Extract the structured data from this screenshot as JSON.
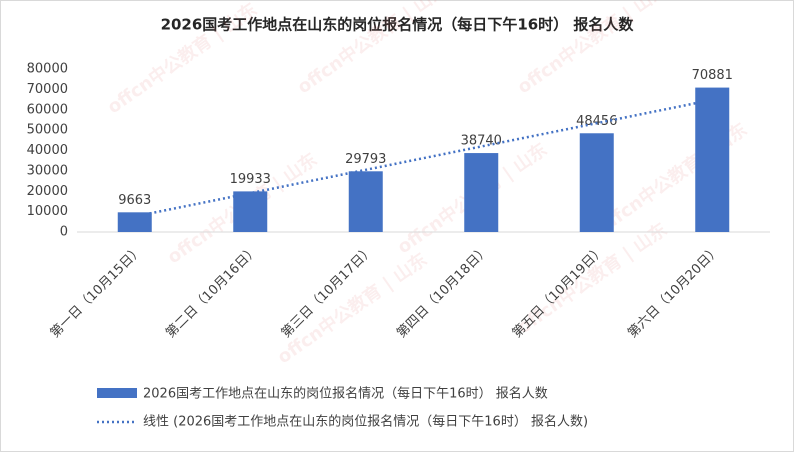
{
  "chart_data": {
    "type": "bar",
    "title": "2026国考工作地点在山东的岗位报名情况（每日下午16时） 报名人数",
    "categories": [
      "第一日（10月15日）",
      "第二日（10月16日）",
      "第三日（10月17日）",
      "第四日（10月18日）",
      "第五日（10月19日）",
      "第六日（10月20日）"
    ],
    "series": [
      {
        "name": "2026国考工作地点在山东的岗位报名情况（每日下午16时） 报名人数",
        "color": "#4472c4",
        "values": [
          9663,
          19933,
          29793,
          38740,
          48456,
          70881
        ]
      }
    ],
    "trendline": {
      "type": "linear",
      "name": "线性 (2026国考工作地点在山东的岗位报名情况（每日下午16时） 报名人数)",
      "color": "#4472c4"
    },
    "ylim": [
      0,
      80000
    ],
    "yticks": [
      0,
      10000,
      20000,
      30000,
      40000,
      50000,
      60000,
      70000,
      80000
    ],
    "grid": false,
    "watermark": "offcn中公教育 | 山东"
  }
}
